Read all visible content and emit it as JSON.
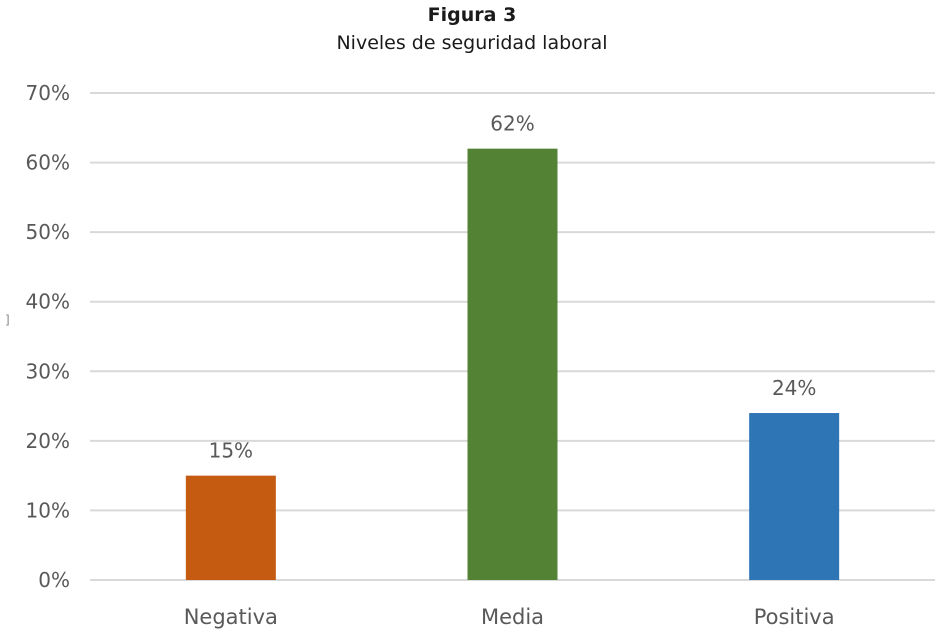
{
  "chart_data": {
    "type": "bar",
    "title": "Figura 3",
    "subtitle": "Niveles de seguridad laboral",
    "categories": [
      "Negativa",
      "Media",
      "Positiva"
    ],
    "values": [
      15,
      62,
      24
    ],
    "value_labels": [
      "15%",
      "62%",
      "24%"
    ],
    "colors": [
      "#C55A11",
      "#548235",
      "#2E75B6"
    ],
    "ylim": [
      0,
      70
    ],
    "yticks": [
      0,
      10,
      20,
      30,
      40,
      50,
      60,
      70
    ],
    "ytick_labels": [
      "0%",
      "10%",
      "20%",
      "30%",
      "40%",
      "50%",
      "60%",
      "70%"
    ],
    "grid": true,
    "gridline_color": "#D9D9D9",
    "legend": "none"
  },
  "margin_mark": "]"
}
